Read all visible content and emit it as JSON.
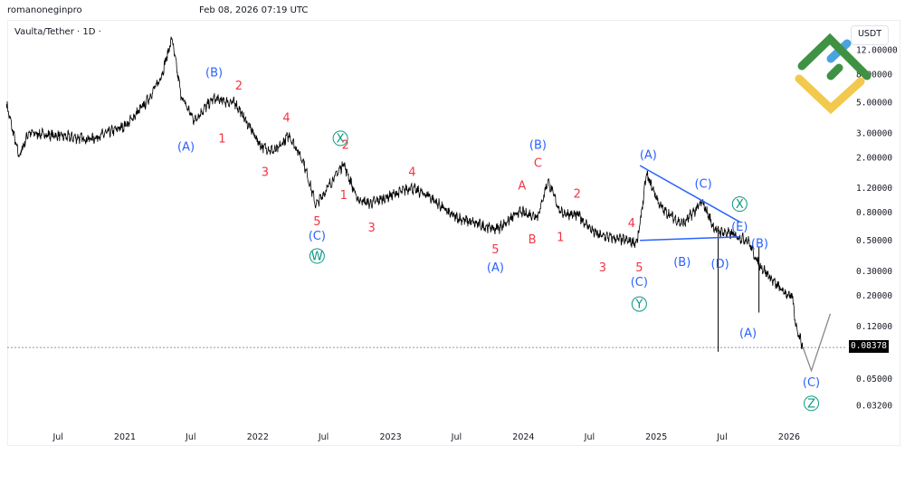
{
  "header": {
    "author": "romanoneginpro",
    "timestamp": "Feb 08, 2026 07:19 UTC"
  },
  "symbol_label": "Vaulta/Tether · 1D ·",
  "currency": "USDT",
  "last_price": "0.08378",
  "colors": {
    "wave_blue": "#2962ff",
    "wave_red": "#f23645",
    "wave_green": "#089981",
    "line": "#000000",
    "trendline": "#2962ff",
    "projection": "#888888",
    "logo_green": "#3f9143",
    "logo_yellow": "#f2c94c",
    "logo_blue": "#4aa3df"
  },
  "chart_data": {
    "type": "line",
    "scale": "log",
    "grid": false,
    "title": "",
    "y_ticks": [
      "12.00000",
      "8.00000",
      "5.00000",
      "3.00000",
      "2.00000",
      "1.20000",
      "0.80000",
      "0.50000",
      "0.30000",
      "0.20000",
      "0.12000",
      "0.05000",
      "0.03200"
    ],
    "x_ticks": [
      {
        "label": "Jul",
        "date": "2020-07-01"
      },
      {
        "label": "2021",
        "date": "2021-01-01"
      },
      {
        "label": "Jul",
        "date": "2021-07-01"
      },
      {
        "label": "2022",
        "date": "2022-01-01"
      },
      {
        "label": "Jul",
        "date": "2022-07-01"
      },
      {
        "label": "2023",
        "date": "2023-01-01"
      },
      {
        "label": "Jul",
        "date": "2023-07-01"
      },
      {
        "label": "2024",
        "date": "2024-01-01"
      },
      {
        "label": "Jul",
        "date": "2024-07-01"
      },
      {
        "label": "2025",
        "date": "2025-01-01"
      },
      {
        "label": "Jul",
        "date": "2025-07-01"
      },
      {
        "label": "2026",
        "date": "2026-01-01"
      }
    ],
    "ylim": [
      0.03,
      16
    ],
    "price_series": [
      [
        "2020-02-10",
        4.85
      ],
      [
        "2020-03-15",
        2.0
      ],
      [
        "2020-04-10",
        3.0
      ],
      [
        "2020-10-01",
        2.7
      ],
      [
        "2021-01-05",
        3.4
      ],
      [
        "2021-03-01",
        5.0
      ],
      [
        "2021-04-10",
        7.5
      ],
      [
        "2021-05-10",
        14.5
      ],
      [
        "2021-06-05",
        5.5
      ],
      [
        "2021-07-10",
        3.7
      ],
      [
        "2021-09-01",
        5.3
      ],
      [
        "2021-11-01",
        4.9
      ],
      [
        "2022-01-10",
        2.4
      ],
      [
        "2022-02-20",
        2.2
      ],
      [
        "2022-03-28",
        2.9
      ],
      [
        "2022-05-05",
        1.9
      ],
      [
        "2022-06-10",
        0.9
      ],
      [
        "2022-08-25",
        1.8
      ],
      [
        "2022-10-01",
        1.0
      ],
      [
        "2022-11-05",
        0.92
      ],
      [
        "2023-02-25",
        1.2
      ],
      [
        "2023-04-15",
        1.05
      ],
      [
        "2023-06-20",
        0.75
      ],
      [
        "2023-09-01",
        0.65
      ],
      [
        "2023-10-20",
        0.6
      ],
      [
        "2023-12-20",
        0.8
      ],
      [
        "2024-02-10",
        0.75
      ],
      [
        "2024-03-08",
        1.35
      ],
      [
        "2024-04-12",
        0.8
      ],
      [
        "2024-06-01",
        0.75
      ],
      [
        "2024-07-20",
        0.55
      ],
      [
        "2024-11-10",
        0.48
      ],
      [
        "2024-12-05",
        1.5
      ],
      [
        "2025-01-15",
        0.85
      ],
      [
        "2025-03-15",
        0.65
      ],
      [
        "2025-05-08",
        0.95
      ],
      [
        "2025-06-10",
        0.6
      ],
      [
        "2025-07-28",
        0.55
      ],
      [
        "2025-09-10",
        0.5
      ],
      [
        "2025-10-05",
        0.35
      ],
      [
        "2025-12-01",
        0.23
      ],
      [
        "2026-01-10",
        0.19
      ],
      [
        "2026-01-20",
        0.12
      ],
      [
        "2026-02-08",
        0.08378
      ]
    ],
    "wicks": [
      {
        "date": "2025-06-20",
        "high": 0.6,
        "low": 0.078
      },
      {
        "date": "2025-10-10",
        "high": 0.45,
        "low": 0.15
      }
    ],
    "trendlines": [
      {
        "name": "triangle-upper",
        "points": [
          [
            "2024-11-17",
            1.74
          ],
          [
            "2025-08-18",
            0.68
          ]
        ]
      },
      {
        "name": "triangle-lower",
        "points": [
          [
            "2024-11-17",
            0.5
          ],
          [
            "2025-08-18",
            0.53
          ]
        ]
      }
    ],
    "projection": [
      [
        "2026-02-08",
        0.0838
      ],
      [
        "2026-03-03",
        0.057
      ],
      [
        "2026-04-24",
        0.147
      ]
    ],
    "annotations": [
      {
        "text": "(A)",
        "date": "2021-06-18",
        "price": 2.39,
        "color": "blue"
      },
      {
        "text": "(B)",
        "date": "2021-09-03",
        "price": 8.2,
        "color": "blue"
      },
      {
        "text": "2",
        "date": "2021-11-10",
        "price": 6.6,
        "color": "red"
      },
      {
        "text": "1",
        "date": "2021-09-25",
        "price": 2.74,
        "color": "red"
      },
      {
        "text": "3",
        "date": "2022-01-21",
        "price": 1.57,
        "color": "red"
      },
      {
        "text": "4",
        "date": "2022-03-21",
        "price": 3.87,
        "color": "red"
      },
      {
        "text": "X",
        "date": "2022-08-16",
        "price": 2.74,
        "color": "green",
        "circled": true
      },
      {
        "text": "2",
        "date": "2022-08-30",
        "price": 2.46,
        "color": "red"
      },
      {
        "text": "1",
        "date": "2022-08-25",
        "price": 1.07,
        "color": "red"
      },
      {
        "text": "5",
        "date": "2022-06-13",
        "price": 0.69,
        "color": "red"
      },
      {
        "text": "(C)",
        "date": "2022-06-13",
        "price": 0.54,
        "color": "blue"
      },
      {
        "text": "W",
        "date": "2022-06-13",
        "price": 0.385,
        "color": "green",
        "circled": true
      },
      {
        "text": "3",
        "date": "2022-11-10",
        "price": 0.62,
        "color": "red"
      },
      {
        "text": "4",
        "date": "2023-03-01",
        "price": 1.57,
        "color": "red"
      },
      {
        "text": "5",
        "date": "2023-10-16",
        "price": 0.43,
        "color": "red"
      },
      {
        "text": "(A)",
        "date": "2023-10-16",
        "price": 0.32,
        "color": "blue"
      },
      {
        "text": "A",
        "date": "2023-12-28",
        "price": 1.25,
        "color": "red"
      },
      {
        "text": "B",
        "date": "2024-01-25",
        "price": 0.51,
        "color": "red"
      },
      {
        "text": "(B)",
        "date": "2024-02-10",
        "price": 2.46,
        "color": "blue"
      },
      {
        "text": "C",
        "date": "2024-02-10",
        "price": 1.82,
        "color": "red"
      },
      {
        "text": "2",
        "date": "2024-05-28",
        "price": 1.09,
        "color": "red"
      },
      {
        "text": "1",
        "date": "2024-04-12",
        "price": 0.53,
        "color": "red"
      },
      {
        "text": "3",
        "date": "2024-08-06",
        "price": 0.32,
        "color": "red"
      },
      {
        "text": "4",
        "date": "2024-10-25",
        "price": 0.67,
        "color": "red"
      },
      {
        "text": "5",
        "date": "2024-11-15",
        "price": 0.32,
        "color": "red"
      },
      {
        "text": "(C)",
        "date": "2024-11-15",
        "price": 0.25,
        "color": "blue"
      },
      {
        "text": "Y",
        "date": "2024-11-15",
        "price": 0.173,
        "color": "green",
        "circled": true
      },
      {
        "text": "(A)",
        "date": "2024-12-10",
        "price": 2.09,
        "color": "blue"
      },
      {
        "text": "(C)",
        "date": "2025-05-10",
        "price": 1.29,
        "color": "blue"
      },
      {
        "text": "X",
        "date": "2025-08-18",
        "price": 0.915,
        "color": "green",
        "circled": true
      },
      {
        "text": "(E)",
        "date": "2025-08-18",
        "price": 0.63,
        "color": "blue"
      },
      {
        "text": "(B)",
        "date": "2025-10-12",
        "price": 0.476,
        "color": "blue"
      },
      {
        "text": "(B)",
        "date": "2025-03-13",
        "price": 0.35,
        "color": "blue"
      },
      {
        "text": "(D)",
        "date": "2025-06-25",
        "price": 0.34,
        "color": "blue"
      },
      {
        "text": "(A)",
        "date": "2025-09-10",
        "price": 0.107,
        "color": "blue"
      },
      {
        "text": "(C)",
        "date": "2026-03-03",
        "price": 0.047,
        "color": "blue"
      },
      {
        "text": "Z",
        "date": "2026-03-03",
        "price": 0.033,
        "color": "green",
        "circled": true
      }
    ]
  }
}
